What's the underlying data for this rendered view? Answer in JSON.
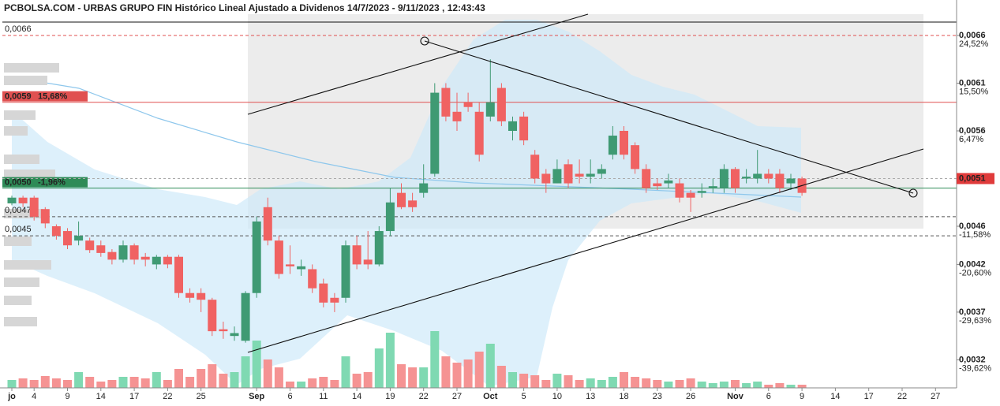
{
  "chart_data": {
    "type": "candlestick",
    "title": "PCBOLSA.COM - URBAS GRUPO FIN Histórico Lineal Ajustado a Dividenos 14/7/2023 - 9/11/2023 , 12:43:43",
    "categories": [
      "jo",
      null,
      "4",
      null,
      null,
      "9",
      null,
      null,
      "14",
      null,
      null,
      "17",
      null,
      null,
      "22",
      null,
      null,
      "25",
      null,
      null,
      null,
      null,
      "Sep",
      null,
      null,
      "6",
      null,
      null,
      "11",
      null,
      null,
      "14",
      null,
      null,
      "19",
      null,
      null,
      "22",
      null,
      null,
      "27",
      null,
      null,
      "Oct",
      null,
      null,
      "5",
      null,
      null,
      "10",
      null,
      null,
      "13",
      null,
      null,
      "18",
      null,
      null,
      "23",
      null,
      null,
      "26",
      null,
      null,
      null,
      "Nov",
      null,
      null,
      "6",
      null,
      null,
      "9",
      null,
      null,
      "14",
      null,
      null,
      "17",
      null,
      null,
      "22",
      null,
      null,
      "27"
    ],
    "open": [
      0.00484,
      0.0049,
      0.0049,
      0.00478,
      0.0046,
      0.00455,
      0.00445,
      0.00445,
      0.0044,
      0.00433,
      0.00425,
      0.0044,
      0.00428,
      0.0042,
      0.00428,
      0.00428,
      0.0039,
      0.0039,
      0.00383,
      0.00352,
      0.00345,
      0.0034,
      0.0039,
      0.0048,
      0.00445,
      0.0042,
      0.00415,
      0.00415,
      0.004,
      0.00385,
      0.00385,
      0.0044,
      0.00425,
      0.0042,
      0.00455,
      0.00495,
      0.00487,
      0.00495,
      0.00515,
      0.00605,
      0.0058,
      0.0059,
      0.0058,
      0.00575,
      0.00605,
      0.0056,
      0.00575,
      0.00535,
      0.00515,
      0.00505,
      0.00525,
      0.00515,
      0.00512,
      0.00515,
      0.00535,
      0.0056,
      0.00545,
      0.0052,
      0.00505,
      0.00505,
      0.00505,
      0.00495,
      0.00495,
      0.005,
      0.005,
      0.0052,
      0.0051,
      0.0051,
      0.00515,
      0.00515,
      0.00505,
      0.0051,
      null,
      null,
      null,
      null,
      null,
      null,
      null,
      null,
      null,
      null,
      null,
      null
    ],
    "high": [
      0.00492,
      0.00492,
      0.00492,
      0.0048,
      0.00462,
      0.00458,
      0.00465,
      0.00448,
      0.00445,
      0.00436,
      0.00445,
      0.00442,
      0.00432,
      0.0043,
      0.0043,
      0.0043,
      0.00395,
      0.00395,
      0.00385,
      0.0036,
      0.00355,
      0.00392,
      0.0047,
      0.0049,
      0.0045,
      0.0044,
      0.00425,
      0.0042,
      0.00405,
      0.0039,
      0.00445,
      0.0045,
      0.00455,
      0.0046,
      0.005,
      0.00505,
      0.00495,
      0.00525,
      0.0061,
      0.0061,
      0.006,
      0.006,
      0.0059,
      0.00635,
      0.0061,
      0.00575,
      0.0058,
      0.0054,
      0.0052,
      0.0053,
      0.0053,
      0.0053,
      0.0053,
      0.00525,
      0.00565,
      0.00565,
      0.00548,
      0.00525,
      0.0051,
      0.00515,
      0.0051,
      0.00498,
      0.00505,
      0.0051,
      0.00525,
      0.00522,
      0.0052,
      0.0054,
      0.0052,
      0.0052,
      0.00515,
      0.00512,
      null,
      null,
      null,
      null,
      null,
      null,
      null,
      null,
      null,
      null,
      null,
      null
    ],
    "low": [
      0.00482,
      0.0048,
      0.00466,
      0.00458,
      0.00446,
      0.00436,
      0.0044,
      0.00432,
      0.00428,
      0.0042,
      0.00422,
      0.0042,
      0.00418,
      0.00415,
      0.00416,
      0.00385,
      0.0038,
      0.0037,
      0.00345,
      0.00342,
      0.0034,
      0.00338,
      0.00385,
      0.0044,
      0.00405,
      0.0041,
      0.00408,
      0.0039,
      0.00375,
      0.0037,
      0.0038,
      0.00415,
      0.00415,
      0.00418,
      0.0045,
      0.00478,
      0.00475,
      0.0049,
      0.00512,
      0.0057,
      0.0056,
      0.0058,
      0.00528,
      0.0057,
      0.00565,
      0.0055,
      0.00545,
      0.00505,
      0.00495,
      0.00505,
      0.005,
      0.00505,
      0.00505,
      0.0051,
      0.0053,
      0.0053,
      0.00515,
      0.00495,
      0.00498,
      0.005,
      0.00485,
      0.00475,
      0.0049,
      0.00495,
      0.00495,
      0.00495,
      0.00505,
      0.00505,
      0.00505,
      0.00495,
      0.00498,
      0.00492,
      null,
      null,
      null,
      null,
      null,
      null,
      null,
      null,
      null,
      null,
      null,
      null
    ],
    "close": [
      0.0049,
      0.00484,
      0.0047,
      0.00463,
      0.0045,
      0.0044,
      0.0045,
      0.00435,
      0.00432,
      0.00425,
      0.0044,
      0.00425,
      0.00425,
      0.00428,
      0.0042,
      0.0039,
      0.00385,
      0.00383,
      0.0035,
      0.0035,
      0.00348,
      0.0039,
      0.00465,
      0.00445,
      0.0041,
      0.00418,
      0.00418,
      0.00395,
      0.0038,
      0.0038,
      0.0044,
      0.0042,
      0.0042,
      0.00455,
      0.00485,
      0.0048,
      0.0048,
      0.00505,
      0.006,
      0.00575,
      0.0057,
      0.00585,
      0.00535,
      0.0059,
      0.0057,
      0.0057,
      0.0055,
      0.0051,
      0.00505,
      0.0052,
      0.00505,
      0.00512,
      0.00515,
      0.0052,
      0.00555,
      0.00535,
      0.0052,
      0.005,
      0.00502,
      0.00508,
      0.0049,
      0.0049,
      0.00497,
      0.00502,
      0.0052,
      0.005,
      0.00512,
      0.00515,
      0.0051,
      0.005,
      0.0051,
      0.00495,
      null,
      null,
      null,
      null,
      null,
      null,
      null,
      null,
      null,
      null,
      null,
      null
    ],
    "volume": [
      10,
      12,
      10,
      15,
      12,
      10,
      20,
      14,
      8,
      10,
      14,
      14,
      12,
      20,
      10,
      24,
      14,
      24,
      30,
      18,
      20,
      40,
      60,
      36,
      26,
      8,
      8,
      12,
      14,
      10,
      40,
      18,
      20,
      50,
      70,
      30,
      26,
      26,
      72,
      40,
      32,
      36,
      46,
      56,
      28,
      20,
      18,
      16,
      10,
      18,
      16,
      10,
      12,
      10,
      14,
      20,
      14,
      12,
      10,
      8,
      10,
      12,
      8,
      6,
      8,
      10,
      6,
      8,
      4,
      6,
      4,
      4,
      null,
      null,
      null,
      null,
      null,
      null,
      null,
      null,
      null,
      null,
      null,
      null
    ],
    "up_color": "#3f9a73",
    "down_color": "#f06262",
    "up_volume_color": "#7fd9b2",
    "down_volume_color": "#f59393",
    "ylim": [
      0.002906,
      0.006823
    ],
    "yticks": [
      {
        "value": 0.0066,
        "label": "0,0066"
      },
      {
        "value": 0.0061,
        "label": "0,0061"
      },
      {
        "value": 0.0056,
        "label": "0,0056"
      },
      {
        "value": 0.0046,
        "label": "0,0046"
      },
      {
        "value": 0.0042,
        "label": "0,0042"
      },
      {
        "value": 0.0037,
        "label": "0,0037"
      },
      {
        "value": 0.0032,
        "label": "0,0032"
      }
    ],
    "ytick_pct_labels": [
      {
        "value": 24.52,
        "label": "24,52%"
      },
      {
        "value": 15.5,
        "label": "15,50%"
      },
      {
        "value": 6.47,
        "label": "6,47%"
      },
      {
        "value": -11.58,
        "label": "-11,58%"
      },
      {
        "value": -20.6,
        "label": "-20,60%"
      },
      {
        "value": -29.63,
        "label": "-29,63%"
      },
      {
        "value": -39.62,
        "label": "-39,62%"
      }
    ],
    "levels": [
      {
        "value": 0.0066,
        "label": "0,0066",
        "color": "#e05050",
        "dashed": true,
        "boxed": false
      },
      {
        "value": 0.0059,
        "label": "0,0059",
        "pct_label": "15,68%",
        "color": "#e05050",
        "dashed": false,
        "boxed": true
      },
      {
        "value": 0.005,
        "label": "0,0050",
        "pct_label": "-1,96%",
        "color": "#2e8b57",
        "dashed": false,
        "boxed": true
      },
      {
        "value": 0.0047,
        "label": "0,0047",
        "color": "#555555",
        "dashed": true,
        "boxed": false
      },
      {
        "value": 0.0045,
        "label": "0,0045",
        "color": "#555555",
        "dashed": true,
        "boxed": false
      }
    ],
    "last_price": {
      "value": 0.0051,
      "label": "0,0051",
      "color": "#e03b3b"
    }
  }
}
